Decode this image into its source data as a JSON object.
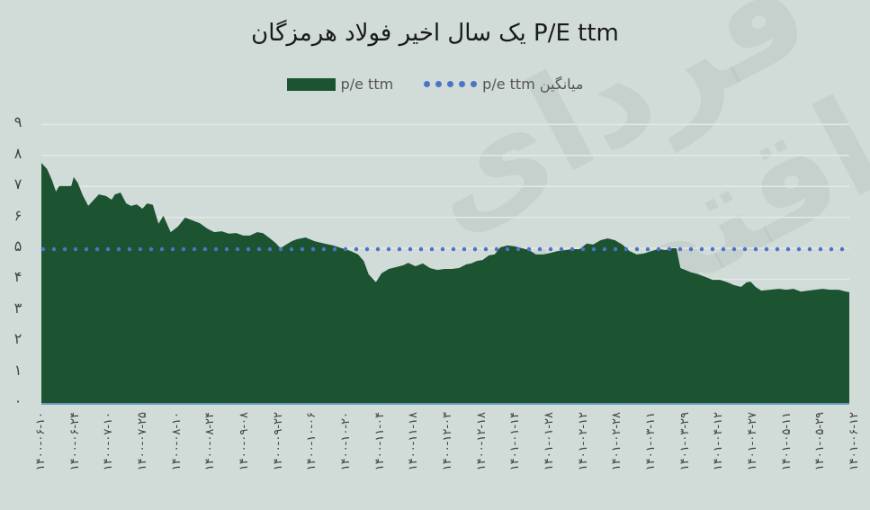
{
  "title": "P/E ttm یک سال اخیر فولاد هرمزگان",
  "watermark": "فردای اقتصاد",
  "legend": {
    "series_label": "p/e ttm",
    "average_label": "میانگین p/e ttm"
  },
  "colors": {
    "area": "#1c5330",
    "average": "#4a74c6",
    "background": "#d1dbd8",
    "gridline": "#e3e9e7",
    "baseline": "#6b9ac4"
  },
  "y_ticks": [
    "۰",
    "۱",
    "۲",
    "۳",
    "۴",
    "۵",
    "۶",
    "۷",
    "۸",
    "۹"
  ],
  "x_ticks": [
    "۱۴۰۰-۰۶-۱۰",
    "۱۴۰۰-۰۶-۲۴",
    "۱۴۰۰-۰۷-۱۰",
    "۱۴۰۰-۰۷-۲۵",
    "۱۴۰۰-۰۸-۱۰",
    "۱۴۰۰-۰۸-۲۴",
    "۱۴۰۰-۰۹-۰۸",
    "۱۴۰۰-۰۹-۲۲",
    "۱۴۰۰-۱۰-۰۶",
    "۱۴۰۰-۱۰-۲۰",
    "۱۴۰۰-۱۱-۰۴",
    "۱۴۰۰-۱۱-۱۸",
    "۱۴۰۰-۱۲-۰۳",
    "۱۴۰۰-۱۲-۱۸",
    "۱۴۰۱-۰۱-۱۴",
    "۱۴۰۱-۰۱-۲۸",
    "۱۴۰۱-۰۲-۱۲",
    "۱۴۰۱-۰۲-۲۸",
    "۱۴۰۱-۰۳-۱۱",
    "۱۴۰۱-۰۳-۲۹",
    "۱۴۰۱-۰۴-۱۲",
    "۱۴۰۱-۰۴-۲۷",
    "۱۴۰۱-۰۵-۱۱",
    "۱۴۰۱-۰۵-۲۹",
    "۱۴۰۱-۰۶-۱۲"
  ],
  "chart_data": {
    "type": "area",
    "title": "P/E ttm یک سال اخیر فولاد هرمزگان",
    "xlabel": "",
    "ylabel": "",
    "ylim": [
      0,
      9
    ],
    "grid": true,
    "legend_position": "top",
    "categories": [
      "۱۴۰۰-۰۶-۱۰",
      "۱۴۰۰-۰۶-۲۴",
      "۱۴۰۰-۰۷-۱۰",
      "۱۴۰۰-۰۷-۲۵",
      "۱۴۰۰-۰۸-۱۰",
      "۱۴۰۰-۰۸-۲۴",
      "۱۴۰۰-۰۹-۰۸",
      "۱۴۰۰-۰۹-۲۲",
      "۱۴۰۰-۱۰-۰۶",
      "۱۴۰۰-۱۰-۲۰",
      "۱۴۰۰-۱۱-۰۴",
      "۱۴۰۰-۱۱-۱۸",
      "۱۴۰۰-۱۲-۰۳",
      "۱۴۰۰-۱۲-۱۸",
      "۱۴۰۱-۰۱-۱۴",
      "۱۴۰۱-۰۱-۲۸",
      "۱۴۰۱-۰۲-۱۲",
      "۱۴۰۱-۰۲-۲۸",
      "۱۴۰۱-۰۳-۱۱",
      "۱۴۰۱-۰۳-۲۹",
      "۱۴۰۱-۰۴-۱۲",
      "۱۴۰۱-۰۴-۲۷",
      "۱۴۰۱-۰۵-۱۱",
      "۱۴۰۱-۰۵-۲۹",
      "۱۴۰۱-۰۶-۱۲"
    ],
    "series": [
      {
        "name": "p/e ttm",
        "type": "area",
        "x_frac": [
          0,
          0.007,
          0.013,
          0.018,
          0.022,
          0.029,
          0.037,
          0.04,
          0.045,
          0.051,
          0.058,
          0.065,
          0.071,
          0.08,
          0.087,
          0.091,
          0.098,
          0.105,
          0.111,
          0.118,
          0.125,
          0.131,
          0.138,
          0.145,
          0.151,
          0.16,
          0.169,
          0.178,
          0.187,
          0.196,
          0.205,
          0.214,
          0.223,
          0.232,
          0.241,
          0.25,
          0.258,
          0.267,
          0.274,
          0.283,
          0.29,
          0.296,
          0.303,
          0.31,
          0.316,
          0.327,
          0.338,
          0.35,
          0.361,
          0.372,
          0.383,
          0.392,
          0.399,
          0.405,
          0.414,
          0.421,
          0.43,
          0.439,
          0.448,
          0.454,
          0.463,
          0.472,
          0.481,
          0.49,
          0.499,
          0.508,
          0.517,
          0.526,
          0.532,
          0.539,
          0.546,
          0.554,
          0.561,
          0.568,
          0.577,
          0.586,
          0.595,
          0.604,
          0.612,
          0.621,
          0.63,
          0.639,
          0.648,
          0.657,
          0.666,
          0.675,
          0.683,
          0.692,
          0.701,
          0.71,
          0.719,
          0.728,
          0.737,
          0.746,
          0.755,
          0.764,
          0.773,
          0.781,
          0.786,
          0.791,
          0.797,
          0.804,
          0.813,
          0.822,
          0.831,
          0.84,
          0.849,
          0.857,
          0.866,
          0.873,
          0.878,
          0.884,
          0.891,
          0.902,
          0.913,
          0.922,
          0.931,
          0.94,
          0.949,
          0.958,
          0.967,
          0.976,
          0.987,
          0.996,
          1.0
        ],
        "values": [
          7.76,
          7.56,
          7.21,
          6.83,
          7.01,
          7.01,
          7.01,
          7.3,
          7.12,
          6.72,
          6.37,
          6.57,
          6.74,
          6.69,
          6.57,
          6.74,
          6.8,
          6.45,
          6.37,
          6.42,
          6.28,
          6.45,
          6.4,
          5.79,
          6.05,
          5.52,
          5.7,
          5.99,
          5.9,
          5.81,
          5.64,
          5.52,
          5.55,
          5.47,
          5.49,
          5.41,
          5.41,
          5.52,
          5.49,
          5.32,
          5.17,
          5.0,
          5.12,
          5.23,
          5.29,
          5.35,
          5.23,
          5.15,
          5.09,
          5.0,
          4.91,
          4.8,
          4.59,
          4.16,
          3.9,
          4.19,
          4.33,
          4.39,
          4.45,
          4.53,
          4.42,
          4.51,
          4.36,
          4.3,
          4.33,
          4.33,
          4.36,
          4.48,
          4.51,
          4.59,
          4.62,
          4.77,
          4.8,
          5.03,
          5.09,
          5.06,
          5.0,
          4.94,
          4.8,
          4.8,
          4.85,
          4.91,
          4.94,
          4.97,
          4.97,
          5.15,
          5.12,
          5.26,
          5.32,
          5.26,
          5.12,
          4.91,
          4.8,
          4.83,
          4.91,
          4.97,
          4.94,
          5.0,
          5.0,
          4.36,
          4.3,
          4.22,
          4.16,
          4.07,
          3.98,
          3.98,
          3.9,
          3.81,
          3.75,
          3.9,
          3.92,
          3.75,
          3.63,
          3.66,
          3.69,
          3.66,
          3.69,
          3.6,
          3.63,
          3.66,
          3.69,
          3.66,
          3.66,
          3.6,
          3.58
        ]
      },
      {
        "name": "میانگین p/e ttm",
        "type": "line",
        "style": "dotted",
        "values": [
          4.97
        ]
      }
    ]
  }
}
